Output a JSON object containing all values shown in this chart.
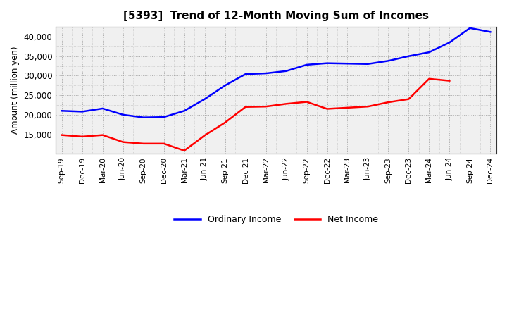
{
  "title": "[5393]  Trend of 12-Month Moving Sum of Incomes",
  "ylabel": "Amount (million yen)",
  "x_labels": [
    "Sep-19",
    "Dec-19",
    "Mar-20",
    "Jun-20",
    "Sep-20",
    "Dec-20",
    "Mar-21",
    "Jun-21",
    "Sep-21",
    "Dec-21",
    "Mar-22",
    "Jun-22",
    "Sep-22",
    "Dec-22",
    "Mar-23",
    "Jun-23",
    "Sep-23",
    "Dec-23",
    "Mar-24",
    "Jun-24",
    "Sep-24",
    "Dec-24"
  ],
  "ordinary_income": [
    21000,
    20800,
    21600,
    20000,
    19300,
    19400,
    21000,
    24000,
    27500,
    30400,
    30600,
    31200,
    32800,
    33200,
    33100,
    33000,
    33800,
    35000,
    36000,
    38500,
    42200,
    41200
  ],
  "net_income": [
    14800,
    14400,
    14800,
    13000,
    12600,
    12600,
    10800,
    14700,
    18000,
    22000,
    22100,
    22800,
    23300,
    21500,
    21800,
    22100,
    23200,
    24000,
    29200,
    28700,
    null,
    null
  ],
  "ordinary_color": "#0000ff",
  "net_color": "#ff0000",
  "background_color": "#ffffff",
  "plot_bg_color": "#f0f0f0",
  "grid_color": "#999999",
  "ylim_min": 10000,
  "ylim_max": 42500,
  "yticks": [
    15000,
    20000,
    25000,
    30000,
    35000,
    40000
  ],
  "legend_labels": [
    "Ordinary Income",
    "Net Income"
  ],
  "linewidth": 1.8
}
